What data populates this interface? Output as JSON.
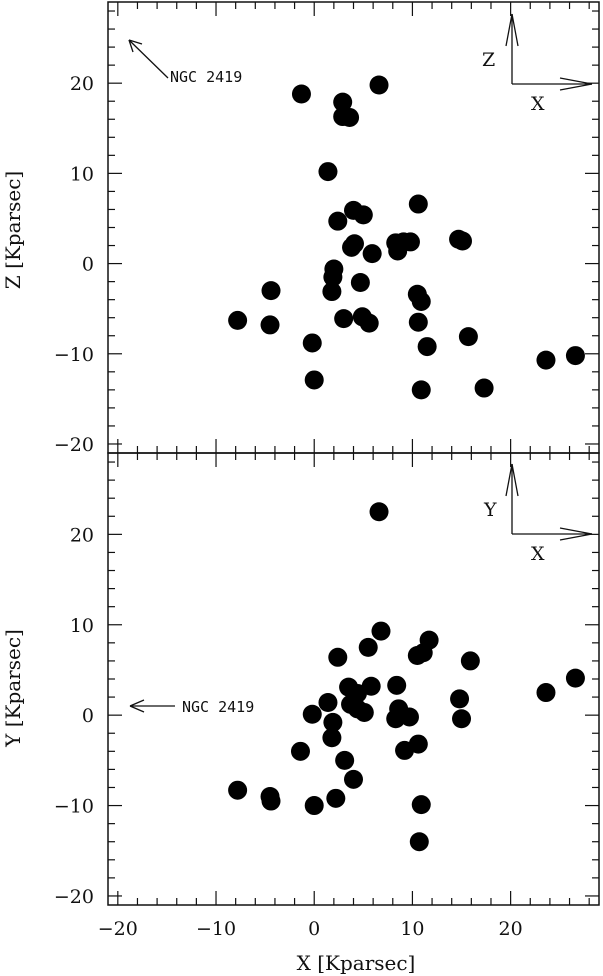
{
  "chart_data": [
    {
      "type": "scatter",
      "id": "xz",
      "xlabel": "",
      "ylabel": "Z [Kparsec]",
      "xlim": [
        -21,
        29
      ],
      "ylim": [
        -21,
        29
      ],
      "yticks": [
        -20,
        -10,
        0,
        10,
        20
      ],
      "annotation": {
        "label": "NGC 2419",
        "direction": "upper-left"
      },
      "compass": {
        "vertical": "Z",
        "horizontal": "X"
      },
      "points": [
        {
          "x": -1.3,
          "y": 18.8
        },
        {
          "x": 2.9,
          "y": 17.9
        },
        {
          "x": 2.9,
          "y": 16.3
        },
        {
          "x": 3.6,
          "y": 16.2
        },
        {
          "x": 6.6,
          "y": 19.8
        },
        {
          "x": 1.4,
          "y": 10.2
        },
        {
          "x": 2.4,
          "y": 4.7
        },
        {
          "x": 4.0,
          "y": 5.9
        },
        {
          "x": 5.0,
          "y": 5.4
        },
        {
          "x": 3.8,
          "y": 1.8
        },
        {
          "x": 4.1,
          "y": 2.2
        },
        {
          "x": 5.9,
          "y": 1.1
        },
        {
          "x": 10.6,
          "y": 6.6
        },
        {
          "x": 8.3,
          "y": 2.3
        },
        {
          "x": 8.5,
          "y": 1.4
        },
        {
          "x": 9.1,
          "y": 2.4
        },
        {
          "x": 9.8,
          "y": 2.4
        },
        {
          "x": 14.7,
          "y": 2.7
        },
        {
          "x": 15.1,
          "y": 2.5
        },
        {
          "x": 2.0,
          "y": -0.6
        },
        {
          "x": 1.9,
          "y": -1.5
        },
        {
          "x": 1.8,
          "y": -3.1
        },
        {
          "x": 4.7,
          "y": -2.1
        },
        {
          "x": 10.5,
          "y": -3.4
        },
        {
          "x": 10.9,
          "y": -4.2
        },
        {
          "x": -4.4,
          "y": -3.0
        },
        {
          "x": -7.8,
          "y": -6.3
        },
        {
          "x": -4.5,
          "y": -6.8
        },
        {
          "x": 3.0,
          "y": -6.1
        },
        {
          "x": 4.9,
          "y": -5.9
        },
        {
          "x": 5.6,
          "y": -6.6
        },
        {
          "x": 10.6,
          "y": -6.5
        },
        {
          "x": 15.7,
          "y": -8.1
        },
        {
          "x": 11.5,
          "y": -9.2
        },
        {
          "x": -0.2,
          "y": -8.8
        },
        {
          "x": 0.0,
          "y": -12.9
        },
        {
          "x": 10.9,
          "y": -14.0
        },
        {
          "x": 17.3,
          "y": -13.8
        },
        {
          "x": 23.6,
          "y": -10.7
        },
        {
          "x": 26.6,
          "y": -10.2
        }
      ]
    },
    {
      "type": "scatter",
      "id": "xy",
      "xlabel": "X [Kparsec]",
      "ylabel": "Y [Kparsec]",
      "xlim": [
        -21,
        29
      ],
      "ylim": [
        -21,
        29
      ],
      "xticks": [
        -20,
        -10,
        0,
        10,
        20
      ],
      "yticks": [
        -20,
        -10,
        0,
        10,
        20
      ],
      "annotation": {
        "label": "NGC 2419",
        "direction": "left"
      },
      "compass": {
        "vertical": "Y",
        "horizontal": "X"
      },
      "points": [
        {
          "x": 6.6,
          "y": 22.5
        },
        {
          "x": 6.8,
          "y": 9.3
        },
        {
          "x": 2.4,
          "y": 6.4
        },
        {
          "x": 5.5,
          "y": 7.5
        },
        {
          "x": 11.7,
          "y": 8.3
        },
        {
          "x": 10.5,
          "y": 6.6
        },
        {
          "x": 11.1,
          "y": 6.9
        },
        {
          "x": 15.9,
          "y": 6.0
        },
        {
          "x": 1.4,
          "y": 1.4
        },
        {
          "x": 3.5,
          "y": 3.1
        },
        {
          "x": 5.8,
          "y": 3.2
        },
        {
          "x": 4.4,
          "y": 2.4
        },
        {
          "x": 3.7,
          "y": 1.2
        },
        {
          "x": 4.4,
          "y": 0.7
        },
        {
          "x": 5.1,
          "y": 0.3
        },
        {
          "x": 8.4,
          "y": 3.3
        },
        {
          "x": 8.6,
          "y": 0.7
        },
        {
          "x": 8.3,
          "y": -0.4
        },
        {
          "x": 9.7,
          "y": -0.2
        },
        {
          "x": -0.2,
          "y": 0.1
        },
        {
          "x": 1.9,
          "y": -0.8
        },
        {
          "x": 1.8,
          "y": -2.5
        },
        {
          "x": 14.8,
          "y": 1.8
        },
        {
          "x": 15.0,
          "y": -0.4
        },
        {
          "x": 26.6,
          "y": 4.1
        },
        {
          "x": 23.6,
          "y": 2.5
        },
        {
          "x": -1.4,
          "y": -4.0
        },
        {
          "x": 3.1,
          "y": -5.0
        },
        {
          "x": 9.2,
          "y": -3.9
        },
        {
          "x": 10.6,
          "y": -3.2
        },
        {
          "x": 4.0,
          "y": -7.1
        },
        {
          "x": -7.8,
          "y": -8.3
        },
        {
          "x": -4.5,
          "y": -9.0
        },
        {
          "x": -4.4,
          "y": -9.5
        },
        {
          "x": 2.2,
          "y": -9.2
        },
        {
          "x": 0.0,
          "y": -10.0
        },
        {
          "x": 10.9,
          "y": -9.9
        },
        {
          "x": 10.7,
          "y": -14.0
        }
      ]
    }
  ]
}
